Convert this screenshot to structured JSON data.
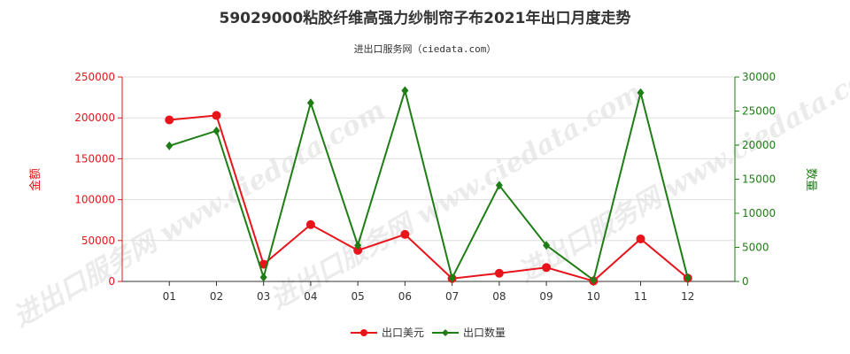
{
  "chart_data": {
    "type": "line",
    "title": "59029000粘胶纤维高强力纱制帘子布2021年出口月度走势",
    "subtitle": "进出口服务网（ciedata.com）",
    "watermark": "进出口服务网 www.ciedata.com",
    "categories": [
      "01",
      "02",
      "03",
      "04",
      "05",
      "06",
      "07",
      "08",
      "09",
      "10",
      "11",
      "12"
    ],
    "y_left": {
      "label": "金额",
      "range": [
        0,
        250000
      ],
      "ticks": [
        "0",
        "50000",
        "100000",
        "150000",
        "200000",
        "250000"
      ]
    },
    "y_right": {
      "label": "数量",
      "range": [
        0,
        30000
      ],
      "ticks": [
        "0",
        "5000",
        "10000",
        "15000",
        "20000",
        "25000",
        "30000"
      ]
    },
    "series": [
      {
        "name": "出口美元",
        "axis": "left",
        "color": "#e8141b",
        "values": [
          197500,
          203000,
          21000,
          69500,
          38000,
          57500,
          3500,
          10000,
          17000,
          500,
          52000,
          4000
        ]
      },
      {
        "name": "出口数量",
        "axis": "right",
        "color": "#1e7d14",
        "values": [
          19900,
          22100,
          600,
          26200,
          5300,
          28000,
          500,
          14100,
          5300,
          200,
          27700,
          500
        ]
      }
    ],
    "colors": {
      "left_axis": "#e8141b",
      "right_axis": "#1e7d14",
      "grid": "#dddddd"
    },
    "grid": true,
    "legend": "bottom-center"
  }
}
